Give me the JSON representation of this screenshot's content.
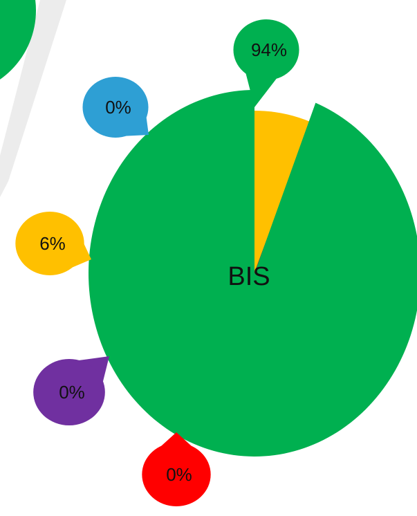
{
  "chart_data": {
    "type": "pie",
    "center_label": "BIS",
    "values": [
      6,
      0,
      0,
      0,
      94
    ],
    "value_labels": [
      "6%",
      "0%",
      "0%",
      "0%",
      "94%"
    ],
    "colors": [
      "#ffc000",
      "#2e9fd4",
      "#7030a0",
      "#ff0000",
      "#00b050"
    ]
  }
}
